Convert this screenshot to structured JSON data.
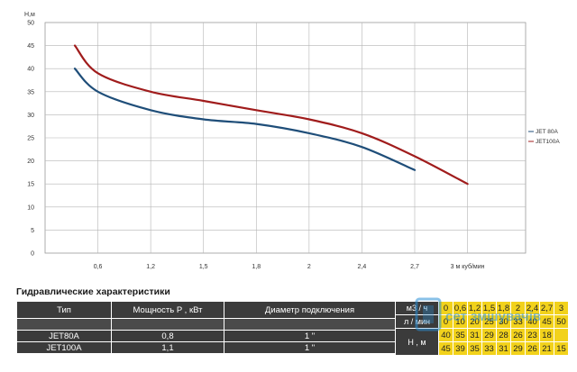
{
  "chart_data": {
    "type": "line",
    "ylabel": "Н,м",
    "ylim": [
      0,
      50
    ],
    "yticks": [
      0,
      5,
      10,
      15,
      20,
      25,
      30,
      35,
      40,
      45,
      50
    ],
    "xticks": [
      {
        "value": 0.6,
        "label": "0,6"
      },
      {
        "value": 1.2,
        "label": "1,2"
      },
      {
        "value": 1.5,
        "label": "1,5"
      },
      {
        "value": 1.8,
        "label": "1,8"
      },
      {
        "value": 2.0,
        "label": "2"
      },
      {
        "value": 2.4,
        "label": "2,4"
      },
      {
        "value": 2.7,
        "label": "2,7"
      },
      {
        "value": 3.0,
        "label": "3 м куб/мин"
      }
    ],
    "grid": true,
    "legend_position": "right",
    "series": [
      {
        "name": "JET 80A",
        "color": "#1f4e79",
        "x": [
          0,
          0.6,
          1.2,
          1.5,
          1.8,
          2.0,
          2.4,
          2.7
        ],
        "y": [
          40,
          35,
          31,
          29,
          28,
          26,
          23,
          18
        ]
      },
      {
        "name": "JET100A",
        "color": "#a01c1c",
        "x": [
          0,
          0.6,
          1.2,
          1.5,
          1.8,
          2.0,
          2.4,
          2.7,
          3.0
        ],
        "y": [
          45,
          39,
          35,
          33,
          31,
          29,
          26,
          21,
          15
        ]
      }
    ]
  },
  "table_title": "Гидравлические характеристики",
  "spec_table": {
    "headers": [
      "Тип",
      "Мощность P , кВт",
      "Диаметр подключения"
    ],
    "rows": [
      {
        "type": "JET80A",
        "power": "0,8",
        "diameter": "1 \""
      },
      {
        "type": "JET100A",
        "power": "1,1",
        "diameter": "1 \""
      }
    ]
  },
  "perf_table": {
    "row1_label": "м3 / ч",
    "row2_label": "л / мин",
    "head_label": "Н , м",
    "flow_m3h": [
      "0",
      "0,6",
      "1,2",
      "1,5",
      "1,8",
      "2",
      "2,4",
      "2,7",
      "3"
    ],
    "flow_lmin": [
      "0",
      "10",
      "20",
      "25",
      "30",
      "33",
      "40",
      "45",
      "50"
    ],
    "head_jet80": [
      "40",
      "35",
      "31",
      "29",
      "28",
      "26",
      "23",
      "18",
      ""
    ],
    "head_jet100": [
      "45",
      "39",
      "35",
      "33",
      "31",
      "29",
      "26",
      "21",
      "15"
    ]
  },
  "watermark_text": "сет змшувачів"
}
